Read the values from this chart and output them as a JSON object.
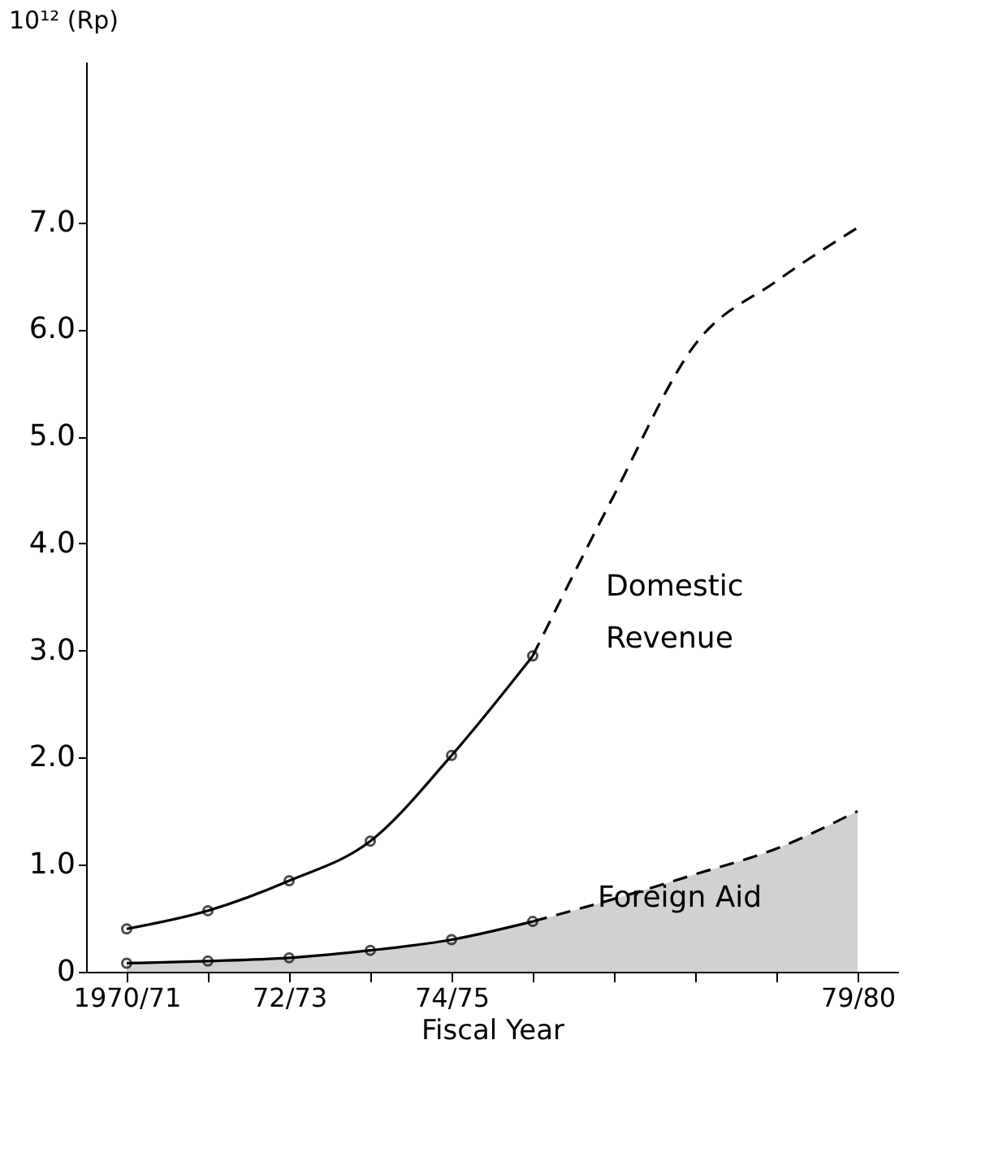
{
  "chart_data": {
    "type": "line",
    "xlabel": "Fiscal Year",
    "ylabel": "10¹² (Rp)",
    "categories": [
      "1970/71",
      null,
      "72/73",
      null,
      "74/75",
      null,
      null,
      null,
      null,
      "79/80"
    ],
    "ylim": [
      0,
      8.5
    ],
    "yticks": [
      0,
      {
        "value": 1,
        "label": "1.0"
      },
      {
        "value": 2,
        "label": "2.0"
      },
      {
        "value": 3,
        "label": "3.0"
      },
      {
        "value": 4,
        "label": "4.0"
      },
      {
        "value": 5,
        "label": "5.0"
      },
      {
        "value": 6,
        "label": "6.0"
      },
      {
        "value": 7,
        "label": "7.0"
      }
    ],
    "grid": false,
    "series": [
      {
        "name": "Domestic Revenue",
        "color": "#000000",
        "marker": "circle",
        "line_style": "solid",
        "values": [
          0.4,
          0.57,
          0.85,
          1.22,
          2.02,
          2.95,
          null,
          null,
          null,
          null
        ]
      },
      {
        "color": "#000000",
        "marker": "none",
        "line_style": "dashed",
        "values": [
          null,
          null,
          null,
          null,
          null,
          2.95,
          4.45,
          5.86,
          6.45,
          6.95
        ]
      },
      {
        "name": "Foreign Aid",
        "type": "area",
        "color": "#000000",
        "marker": "circle",
        "line_style": "solid",
        "values": [
          0.08,
          0.1,
          0.13,
          0.2,
          0.3,
          0.47,
          null,
          null,
          null,
          null
        ]
      },
      {
        "type": "area",
        "color": "#000000",
        "marker": "none",
        "line_style": "dashed",
        "values": [
          null,
          null,
          null,
          null,
          null,
          0.47,
          0.68,
          0.91,
          1.15,
          1.5
        ]
      }
    ]
  }
}
